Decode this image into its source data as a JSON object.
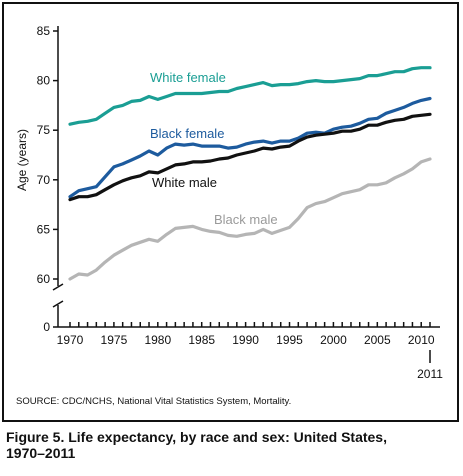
{
  "chart_data": {
    "type": "line",
    "ylabel": "Age (years)",
    "xlim": [
      1970,
      2011
    ],
    "ylim": [
      60,
      85
    ],
    "y_axis_break": true,
    "y_zero_label": "0",
    "y_ticks": [
      60,
      65,
      70,
      75,
      80,
      85
    ],
    "x_ticks": [
      1970,
      1975,
      1980,
      1985,
      1990,
      1995,
      2000,
      2005,
      2010
    ],
    "x_end_label": "2011",
    "x": [
      1970,
      1971,
      1972,
      1973,
      1974,
      1975,
      1976,
      1977,
      1978,
      1979,
      1980,
      1981,
      1982,
      1983,
      1984,
      1985,
      1986,
      1987,
      1988,
      1989,
      1990,
      1991,
      1992,
      1993,
      1994,
      1995,
      1996,
      1997,
      1998,
      1999,
      2000,
      2001,
      2002,
      2003,
      2004,
      2005,
      2006,
      2007,
      2008,
      2009,
      2010,
      2011
    ],
    "series": [
      {
        "name": "White female",
        "color": "#1a9e94",
        "values": [
          75.6,
          75.8,
          75.9,
          76.1,
          76.7,
          77.3,
          77.5,
          77.9,
          78.0,
          78.4,
          78.1,
          78.4,
          78.7,
          78.7,
          78.7,
          78.7,
          78.8,
          78.9,
          78.9,
          79.2,
          79.4,
          79.6,
          79.8,
          79.5,
          79.6,
          79.6,
          79.7,
          79.9,
          80.0,
          79.9,
          79.9,
          80.0,
          80.1,
          80.2,
          80.5,
          80.5,
          80.7,
          80.9,
          80.9,
          81.2,
          81.3,
          81.3
        ]
      },
      {
        "name": "Black female",
        "color": "#1d5b9e",
        "values": [
          68.3,
          68.9,
          69.1,
          69.3,
          70.3,
          71.3,
          71.6,
          72.0,
          72.4,
          72.9,
          72.5,
          73.2,
          73.6,
          73.5,
          73.6,
          73.4,
          73.4,
          73.4,
          73.2,
          73.3,
          73.6,
          73.8,
          73.9,
          73.7,
          73.9,
          73.9,
          74.2,
          74.7,
          74.8,
          74.7,
          75.1,
          75.3,
          75.4,
          75.7,
          76.1,
          76.2,
          76.7,
          77.0,
          77.3,
          77.7,
          78.0,
          78.2
        ]
      },
      {
        "name": "White male",
        "color": "#111111",
        "values": [
          68.0,
          68.3,
          68.3,
          68.5,
          69.0,
          69.5,
          69.9,
          70.2,
          70.4,
          70.8,
          70.7,
          71.1,
          71.5,
          71.6,
          71.8,
          71.8,
          71.9,
          72.1,
          72.2,
          72.5,
          72.7,
          72.9,
          73.2,
          73.1,
          73.3,
          73.4,
          73.9,
          74.3,
          74.5,
          74.6,
          74.7,
          74.9,
          74.9,
          75.1,
          75.5,
          75.5,
          75.8,
          76.0,
          76.1,
          76.4,
          76.5,
          76.6
        ]
      },
      {
        "name": "Black male",
        "color": "#b5b5b5",
        "values": [
          60.0,
          60.5,
          60.4,
          60.9,
          61.7,
          62.4,
          62.9,
          63.4,
          63.7,
          64.0,
          63.8,
          64.5,
          65.1,
          65.2,
          65.3,
          65.0,
          64.8,
          64.7,
          64.4,
          64.3,
          64.5,
          64.6,
          65.0,
          64.6,
          64.9,
          65.2,
          66.1,
          67.2,
          67.6,
          67.8,
          68.2,
          68.6,
          68.8,
          69.0,
          69.5,
          69.5,
          69.7,
          70.2,
          70.6,
          71.1,
          71.8,
          72.1
        ]
      }
    ]
  },
  "source_text": "SOURCE: CDC/NCHS, National Vital Statistics System, Mortality.",
  "caption_line1": "Figure 5. Life expectancy, by race and sex: United States,",
  "caption_line2": "1970–2011"
}
